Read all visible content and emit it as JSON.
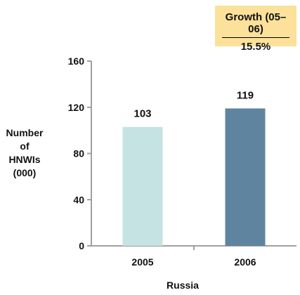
{
  "growth": {
    "title": "Growth (05–06)",
    "value": "15.5%",
    "background": "#fbe19a"
  },
  "y_axis_title_lines": [
    "Number",
    "of",
    "HNWIs",
    "(000)"
  ],
  "chart_data": {
    "type": "bar",
    "categories": [
      "2005",
      "2006"
    ],
    "values": [
      103,
      119
    ],
    "data_labels": [
      "103",
      "119"
    ],
    "colors": [
      "#c5e3e2",
      "#5f849f"
    ],
    "xlabel": "Russia",
    "ylabel": "Number of HNWIs (000)",
    "ylim": [
      0,
      160
    ],
    "yticks": [
      0,
      40,
      80,
      120,
      160
    ],
    "ytick_labels": [
      "0",
      "40",
      "80",
      "120",
      "160"
    ],
    "grid": false,
    "axis_color": "#a0a0a0"
  }
}
